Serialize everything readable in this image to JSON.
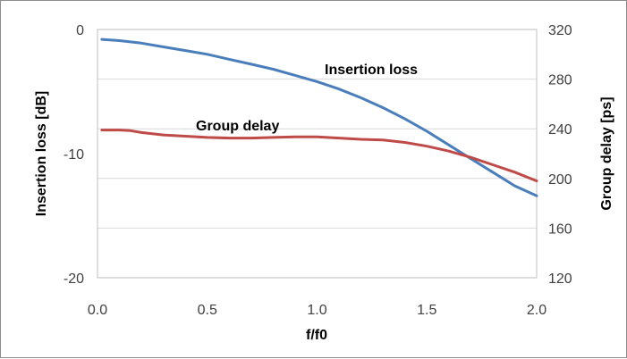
{
  "chart_data": {
    "type": "line",
    "xlabel": "f/f0",
    "ylabel_left": "Insertion loss [dB]",
    "ylabel_right": "Group delay [ps]",
    "xlim": [
      0.0,
      2.0
    ],
    "ylim_left": [
      -20,
      0
    ],
    "ylim_right": [
      120,
      320
    ],
    "x_ticks": [
      "0.0",
      "0.5",
      "1.0",
      "1.5",
      "2.0"
    ],
    "y_left_ticks": [
      "0",
      "-10",
      "-20"
    ],
    "y_right_ticks": [
      "320",
      "280",
      "240",
      "200",
      "160",
      "120"
    ],
    "grid": "horizontal",
    "legend": "none",
    "series": [
      {
        "name": "Insertion loss",
        "axis": "left",
        "color": "#4a7ebb",
        "x": [
          0.02,
          0.1,
          0.2,
          0.3,
          0.4,
          0.5,
          0.6,
          0.7,
          0.8,
          0.9,
          1.0,
          1.1,
          1.2,
          1.3,
          1.4,
          1.5,
          1.6,
          1.7,
          1.8,
          1.9,
          2.0
        ],
        "y": [
          -0.8,
          -0.9,
          -1.1,
          -1.4,
          -1.7,
          -2.0,
          -2.4,
          -2.8,
          -3.2,
          -3.7,
          -4.2,
          -4.8,
          -5.5,
          -6.3,
          -7.2,
          -8.2,
          -9.3,
          -10.4,
          -11.5,
          -12.6,
          -13.4
        ]
      },
      {
        "name": "Group delay",
        "axis": "right",
        "color": "#be4b48",
        "x": [
          0.02,
          0.1,
          0.15,
          0.2,
          0.3,
          0.4,
          0.5,
          0.6,
          0.7,
          0.8,
          0.9,
          1.0,
          1.1,
          1.2,
          1.3,
          1.4,
          1.5,
          1.6,
          1.7,
          1.8,
          1.9,
          2.0
        ],
        "y": [
          239,
          239,
          238.5,
          237,
          235,
          234,
          233,
          232.5,
          232.5,
          233,
          233.5,
          233.5,
          232.5,
          231.5,
          231,
          229,
          226,
          222,
          217,
          211,
          205,
          198
        ]
      }
    ],
    "annotations": [
      {
        "text": "Insertion loss"
      },
      {
        "text": "Group delay"
      }
    ]
  }
}
